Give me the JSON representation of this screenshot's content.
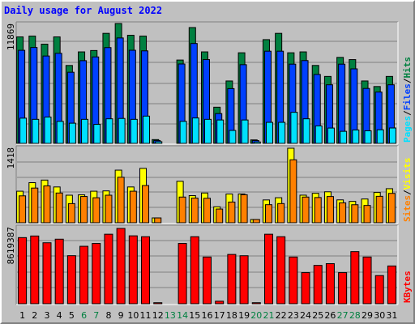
{
  "title": "Daily usage for August 2022",
  "colors": {
    "hits": "#008040",
    "files": "#0040ff",
    "pages": "#00e0ff",
    "visits": "#ffff00",
    "sites": "#ff8000",
    "kbytes": "#ff0000"
  },
  "chart_data": [
    {
      "type": "bar",
      "name": "hits-files-pages",
      "categories": [
        "1",
        "2",
        "3",
        "4",
        "5",
        "6",
        "7",
        "8",
        "9",
        "10",
        "11",
        "12",
        "13",
        "14",
        "15",
        "16",
        "17",
        "18",
        "19",
        "20",
        "21",
        "22",
        "23",
        "24",
        "25",
        "26",
        "27",
        "28",
        "29",
        "30",
        "31"
      ],
      "ymax_label": "11869",
      "ylim": [
        0,
        11869
      ],
      "series": [
        {
          "name": "Hits",
          "values": [
            10542,
            10623,
            9824,
            10542,
            7713,
            9058,
            9193,
            10892,
            11869,
            10703,
            10622,
            375,
            0,
            8251,
            11466,
            9058,
            3582,
            6178,
            8970,
            345,
            10271,
            10892,
            8970,
            9058,
            7716,
            6628,
            8513,
            8295,
            6178,
            5628,
            6628
          ]
        },
        {
          "name": "Files",
          "values": [
            9214,
            9493,
            8650,
            8917,
            7043,
            8189,
            8559,
            9484,
            10437,
            9219,
            9159,
            284,
            0,
            7860,
            9889,
            8297,
            2949,
            5420,
            7791,
            281,
            9127,
            9127,
            7843,
            8198,
            6824,
            5800,
            7843,
            7378,
            5437,
            5081,
            5800
          ]
        },
        {
          "name": "Pages",
          "values": [
            2497,
            2379,
            2608,
            2181,
            1996,
            2379,
            1879,
            2433,
            2468,
            2379,
            2700,
            165,
            0,
            2181,
            2515,
            2379,
            2315,
            1282,
            2315,
            140,
            2082,
            2082,
            3075,
            2433,
            1732,
            1517,
            1193,
            1327,
            1246,
            1347,
            1524
          ]
        }
      ],
      "legend": [
        "Pages",
        "Files",
        "Hits"
      ]
    },
    {
      "type": "bar",
      "name": "visits-sites",
      "categories": [
        "1",
        "2",
        "3",
        "4",
        "5",
        "6",
        "7",
        "8",
        "9",
        "10",
        "11",
        "12",
        "13",
        "14",
        "15",
        "16",
        "17",
        "18",
        "19",
        "20",
        "21",
        "22",
        "23",
        "24",
        "25",
        "26",
        "27",
        "28",
        "29",
        "30",
        "31"
      ],
      "ymax_label": "1418",
      "ylim": [
        0,
        1418
      ],
      "series": [
        {
          "name": "Visits",
          "values": [
            600,
            763,
            812,
            681,
            524,
            531,
            600,
            606,
            1001,
            681,
            1035,
            92,
            0,
            789,
            516,
            566,
            304,
            547,
            548,
            62,
            434,
            476,
            1418,
            525,
            560,
            589,
            435,
            406,
            452,
            576,
            648
          ]
        },
        {
          "name": "Sites",
          "values": [
            512,
            660,
            701,
            566,
            364,
            500,
            476,
            524,
            866,
            600,
            708,
            92,
            0,
            489,
            469,
            466,
            261,
            394,
            534,
            62,
            344,
            365,
            1198,
            489,
            480,
            499,
            379,
            343,
            329,
            503,
            559
          ]
        }
      ],
      "legend": [
        "Sites",
        "Visits"
      ]
    },
    {
      "type": "bar",
      "name": "kbytes",
      "categories": [
        "1",
        "2",
        "3",
        "4",
        "5",
        "6",
        "7",
        "8",
        "9",
        "10",
        "11",
        "12",
        "13",
        "14",
        "15",
        "16",
        "17",
        "18",
        "19",
        "20",
        "21",
        "22",
        "23",
        "24",
        "25",
        "26",
        "27",
        "28",
        "29",
        "30",
        "31"
      ],
      "ymax_label": "8619387",
      "ylim": [
        0,
        8619387
      ],
      "series": [
        {
          "name": "KBytes",
          "values": [
            7569000,
            7753000,
            6978000,
            7388000,
            5500000,
            6575000,
            6898000,
            7957000,
            8619387,
            7772000,
            7672000,
            120000,
            0,
            6898000,
            7672000,
            5348000,
            290000,
            5643000,
            5494000,
            120000,
            7957000,
            7672000,
            5348000,
            3562000,
            4387000,
            4587000,
            3562000,
            5963000,
            5348000,
            3224000,
            4325000
          ]
        }
      ],
      "legend": [
        "KBytes"
      ]
    }
  ],
  "legend_separator": "/",
  "x_label_colors": {
    "weekday": "#000000",
    "weekend": "#008040"
  },
  "weekend_days": [
    6,
    7,
    13,
    14,
    20,
    21,
    27,
    28
  ]
}
